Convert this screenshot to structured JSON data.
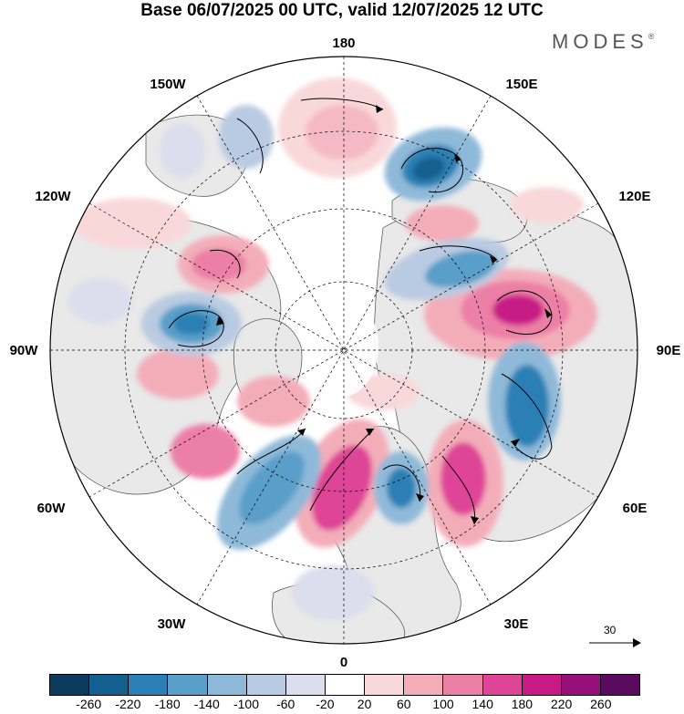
{
  "title": "Base 06/07/2025 00 UTC, valid 12/07/2025 12 UTC",
  "brand": "MODES",
  "brand_mark": "®",
  "longitude_labels": {
    "top": "180",
    "bottom": "0",
    "left": "90W",
    "right": "90E",
    "upper_left_outer": "120W",
    "upper_left_inner": "150W",
    "upper_right_inner": "150E",
    "upper_right_outer": "120E",
    "lower_left_outer": "60W",
    "lower_left_inner": "30W",
    "lower_right_inner": "30E",
    "lower_right_outer": "60E"
  },
  "reference_vector": {
    "label": "30"
  },
  "colorbar": {
    "ticks": [
      "-260",
      "-220",
      "-180",
      "-140",
      "-100",
      "-60",
      "-20",
      "20",
      "60",
      "100",
      "140",
      "180",
      "220",
      "260"
    ],
    "colors": [
      "#0d3b5e",
      "#135f8f",
      "#2a80b5",
      "#5a9fc9",
      "#8fb9d9",
      "#b9cbe2",
      "#dcdded",
      "#ffffff",
      "#f9d8d9",
      "#f3adb9",
      "#ec7fa6",
      "#df4596",
      "#c71a86",
      "#95107a",
      "#5a0a5f"
    ]
  },
  "colors": {
    "land": "#e9e9e9",
    "ocean": "#ffffff",
    "grid": "#000000"
  }
}
